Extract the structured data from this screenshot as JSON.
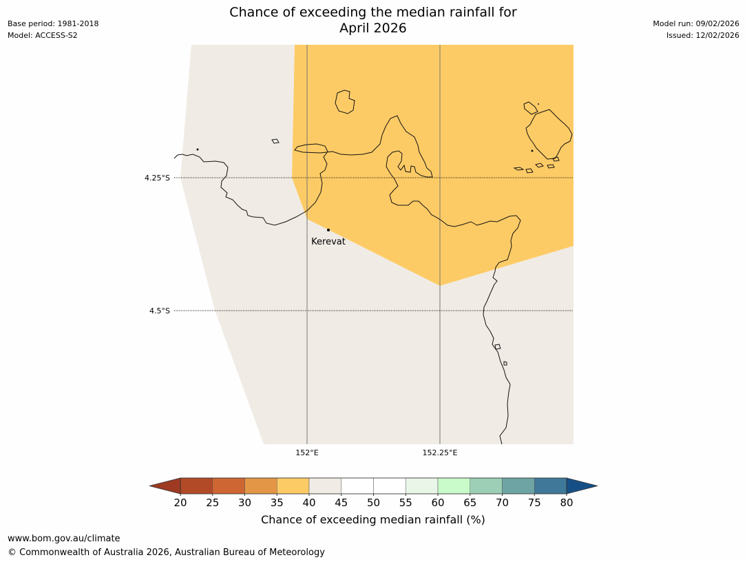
{
  "header": {
    "title_line1": "Chance of exceeding the median rainfall for",
    "title_line2": "April 2026",
    "base_period": "Base period: 1981-2018",
    "model": "Model: ACCESS-S2",
    "model_run": "Model run: 09/02/2026",
    "issued": "Issued: 12/02/2026"
  },
  "map": {
    "latitude_labels": [
      "4.25°S",
      "4.5°S"
    ],
    "longitude_labels": [
      "152°E",
      "152.25°E"
    ],
    "places": [
      {
        "name": "Kerevat"
      }
    ],
    "regions": [
      {
        "category": "40-45",
        "color": "#f0ebe4"
      },
      {
        "category": "35-40",
        "color": "#fdcb66"
      }
    ]
  },
  "legend": {
    "title": "Chance of exceeding median rainfall (%)",
    "ticks": [
      "20",
      "25",
      "30",
      "35",
      "40",
      "45",
      "50",
      "55",
      "60",
      "65",
      "70",
      "75",
      "80"
    ],
    "under_color": "#9e3a22",
    "over_color": "#164f85",
    "colors": [
      "#b24a27",
      "#ce6633",
      "#e39746",
      "#fdcb66",
      "#f0ebe4",
      "#ffffff",
      "#ffffff",
      "#e9f6e8",
      "#c9fbca",
      "#9dcfb6",
      "#6fa4a4",
      "#3f7898"
    ]
  },
  "footer": {
    "url": "www.bom.gov.au/climate",
    "copyright": "© Commonwealth of Australia 2026, Australian Bureau of Meteorology"
  }
}
